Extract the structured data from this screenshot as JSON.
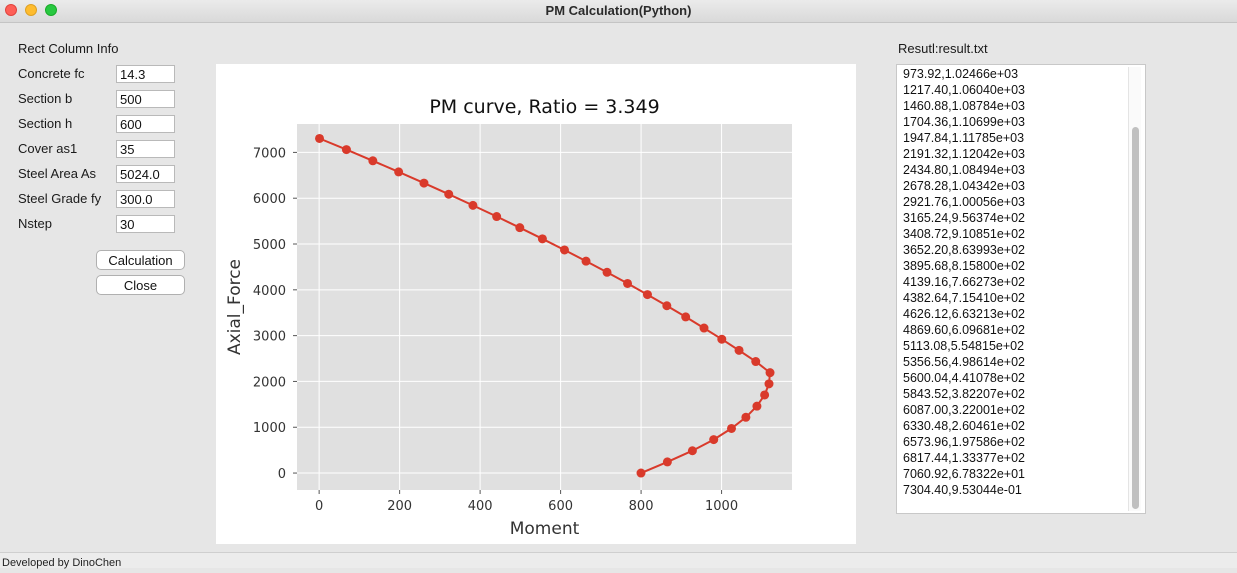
{
  "window": {
    "title": "PM Calculation(Python)"
  },
  "form": {
    "section_title": "Rect Column Info",
    "fields": [
      {
        "label": "Concrete fc",
        "value": "14.3"
      },
      {
        "label": "Section b",
        "value": "500"
      },
      {
        "label": "Section h",
        "value": "600"
      },
      {
        "label": "Cover as1",
        "value": "35"
      },
      {
        "label": "Steel Area As",
        "value": "5024.0"
      },
      {
        "label": "Steel Grade fy",
        "value": "300.0"
      },
      {
        "label": "Nstep",
        "value": "30"
      }
    ],
    "calc_button": "Calculation",
    "close_button": "Close"
  },
  "chart_data": {
    "type": "line",
    "title": "PM curve, Ratio = 3.349",
    "xlabel": "Moment",
    "ylabel": "Axial_Force",
    "xlim": [
      -55,
      1175
    ],
    "ylim": [
      -370,
      7620
    ],
    "xticks": [
      0,
      200,
      400,
      600,
      800,
      1000
    ],
    "yticks": [
      0,
      1000,
      2000,
      3000,
      4000,
      5000,
      6000,
      7000
    ],
    "grid": true,
    "line_color": "#d93a2b",
    "background_color": "#e0e0e0",
    "series": [
      {
        "x": [
          0.95,
          67.8,
          133.4,
          197.6,
          260.5,
          322.0,
          382.2,
          441.1,
          498.6,
          554.8,
          609.7,
          663.2,
          715.4,
          766.3,
          815.8,
          863.99,
          910.85,
          956.37,
          1000.56,
          1043.42,
          1084.94,
          1120.42,
          1117.85,
          1106.99,
          1087.84,
          1060.4,
          1024.66,
          980.44,
          927.52,
          865.35,
          799.8
        ],
        "y": [
          7304.4,
          7060.92,
          6817.44,
          6573.96,
          6330.48,
          6087.0,
          5843.52,
          5600.04,
          5356.56,
          5113.08,
          4869.6,
          4626.12,
          4382.64,
          4139.16,
          3895.68,
          3652.2,
          3408.72,
          3165.24,
          2921.76,
          2678.28,
          2434.8,
          2191.32,
          1947.84,
          1704.36,
          1460.88,
          1217.4,
          973.92,
          730.44,
          486.96,
          243.48,
          0
        ]
      }
    ]
  },
  "results": {
    "label": "Resutl:result.txt",
    "lines": [
      "973.92,1.02466e+03",
      "1217.40,1.06040e+03",
      "1460.88,1.08784e+03",
      "1704.36,1.10699e+03",
      "1947.84,1.11785e+03",
      "2191.32,1.12042e+03",
      "2434.80,1.08494e+03",
      "2678.28,1.04342e+03",
      "2921.76,1.00056e+03",
      "3165.24,9.56374e+02",
      "3408.72,9.10851e+02",
      "3652.20,8.63993e+02",
      "3895.68,8.15800e+02",
      "4139.16,7.66273e+02",
      "4382.64,7.15410e+02",
      "4626.12,6.63213e+02",
      "4869.60,6.09681e+02",
      "5113.08,5.54815e+02",
      "5356.56,4.98614e+02",
      "5600.04,4.41078e+02",
      "5843.52,3.82207e+02",
      "6087.00,3.22001e+02",
      "6330.48,2.60461e+02",
      "6573.96,1.97586e+02",
      "6817.44,1.33377e+02",
      "7060.92,6.78322e+01",
      "7304.40,9.53044e-01"
    ]
  },
  "status": {
    "text": "Developed by DinoChen"
  }
}
